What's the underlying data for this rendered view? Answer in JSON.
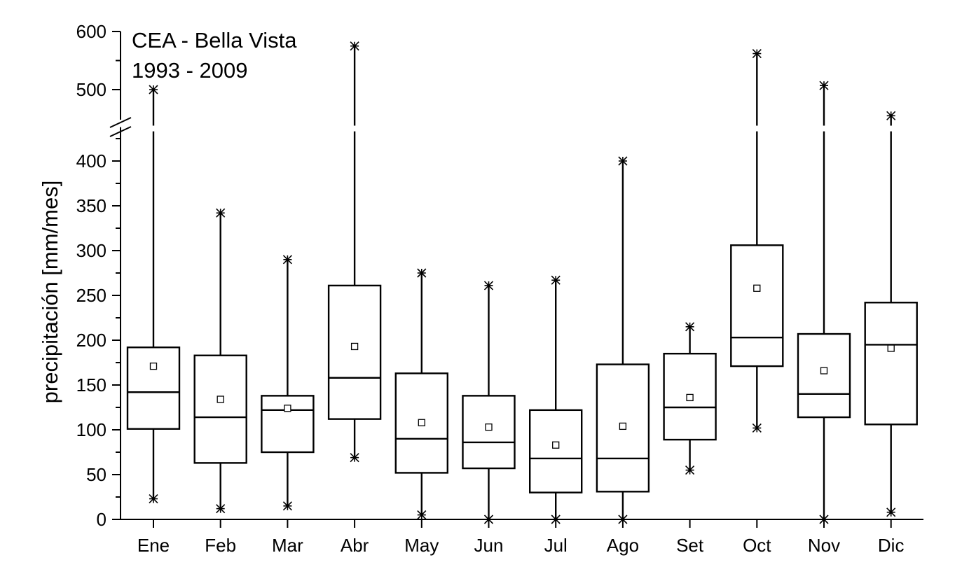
{
  "chart_data": {
    "type": "box",
    "title_lines": [
      "CEA - Bella Vista",
      "1993 - 2009"
    ],
    "ylabel": "precipitación [mm/mes]",
    "xlabel": "",
    "ylim": [
      0,
      600
    ],
    "axis_break": [
      430,
      450
    ],
    "yticks": [
      0,
      50,
      100,
      150,
      200,
      250,
      300,
      350,
      400,
      500,
      600
    ],
    "categories": [
      "Ene",
      "Feb",
      "Mar",
      "Abr",
      "May",
      "Jun",
      "Jul",
      "Ago",
      "Set",
      "Oct",
      "Nov",
      "Dic"
    ],
    "boxes": [
      {
        "q1": 101,
        "median": 142,
        "q3": 192,
        "mean": 171,
        "min": 23,
        "max": 500
      },
      {
        "q1": 63,
        "median": 114,
        "q3": 183,
        "mean": 134,
        "min": 12,
        "max": 342
      },
      {
        "q1": 75,
        "median": 122,
        "q3": 138,
        "mean": 124,
        "min": 15,
        "max": 290
      },
      {
        "q1": 112,
        "median": 158,
        "q3": 261,
        "mean": 193,
        "min": 69,
        "max": 575
      },
      {
        "q1": 52,
        "median": 90,
        "q3": 163,
        "mean": 108,
        "min": 5,
        "max": 275
      },
      {
        "q1": 57,
        "median": 86,
        "q3": 138,
        "mean": 103,
        "min": 0,
        "max": 261
      },
      {
        "q1": 30,
        "median": 68,
        "q3": 122,
        "mean": 83,
        "min": 0,
        "max": 267
      },
      {
        "q1": 31,
        "median": 68,
        "q3": 173,
        "mean": 104,
        "min": 0,
        "max": 400
      },
      {
        "q1": 89,
        "median": 125,
        "q3": 185,
        "mean": 136,
        "min": 55,
        "max": 215
      },
      {
        "q1": 171,
        "median": 203,
        "q3": 306,
        "mean": 258,
        "min": 102,
        "max": 562
      },
      {
        "q1": 114,
        "median": 140,
        "q3": 207,
        "mean": 166,
        "min": 0,
        "max": 507
      },
      {
        "q1": 106,
        "median": 195,
        "q3": 242,
        "mean": 191,
        "min": 8,
        "max": 455
      }
    ]
  }
}
